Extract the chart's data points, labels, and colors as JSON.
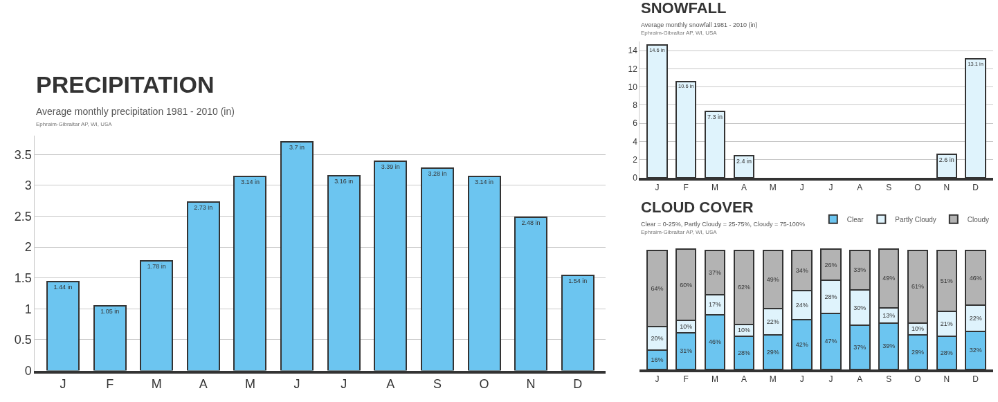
{
  "chart_data": [
    {
      "type": "bar",
      "title": "PRECIPITATION",
      "subtitle": "Average monthly precipitation 1981 - 2010 (in)",
      "annotations": [
        "Ephraim-Gibraltar AP, WI, USA"
      ],
      "categories": [
        "J",
        "F",
        "M",
        "A",
        "M",
        "J",
        "J",
        "A",
        "S",
        "O",
        "N",
        "D"
      ],
      "series": [
        {
          "color": "#6cc5f0",
          "values": [
            1.44,
            1.05,
            1.78,
            2.73,
            3.14,
            3.7,
            3.16,
            3.39,
            3.28,
            3.14,
            2.48,
            1.54
          ],
          "value_labels": [
            "1.44 in",
            "1.05 in",
            "1.78 in",
            "2.73 in",
            "3.14 in",
            "3.7 in",
            "3.16 in",
            "3.39 in",
            "3.28 in",
            "3.14 in",
            "2.48 in",
            "1.54 in"
          ]
        }
      ],
      "ylim": [
        0,
        3.8
      ],
      "yticks": [
        0,
        0.5,
        1,
        1.5,
        2,
        2.5,
        3,
        3.5
      ],
      "grid": "y",
      "legend": false
    },
    {
      "type": "bar",
      "title": "SNOWFALL",
      "subtitle": "Average monthly snowfall 1981 - 2010 (in)",
      "annotations": [
        "Ephraim-Gibraltar AP, WI, USA"
      ],
      "categories": [
        "J",
        "F",
        "M",
        "A",
        "M",
        "J",
        "J",
        "A",
        "S",
        "O",
        "N",
        "D"
      ],
      "series": [
        {
          "color": "#dff3fc",
          "values": [
            14.6,
            10.6,
            7.3,
            2.4,
            null,
            null,
            null,
            null,
            null,
            null,
            2.6,
            13.1
          ],
          "value_labels": [
            "14.6 in",
            "10.6 in",
            "7.3 in",
            "2.4 in",
            null,
            null,
            null,
            null,
            null,
            null,
            "2.6 in",
            "13.1 in"
          ]
        }
      ],
      "ylim": [
        0,
        15
      ],
      "yticks": [
        0,
        2,
        4,
        6,
        8,
        10,
        12,
        14
      ],
      "grid": "y",
      "legend": false
    },
    {
      "type": "bar",
      "title": "CLOUD COVER",
      "subtitle": "Clear = 0-25%, Partly Cloudy = 25-75%, Cloudy = 75-100%",
      "annotations": [
        "Ephraim-Gibraltar AP, WI, USA"
      ],
      "categories": [
        "J",
        "F",
        "M",
        "A",
        "M",
        "J",
        "J",
        "A",
        "S",
        "O",
        "N",
        "D"
      ],
      "stacked": true,
      "tick_labels": "x",
      "legend": "top right",
      "series": [
        {
          "name": "Clear",
          "color": "#6cc5f0",
          "values": [
            16,
            31,
            46,
            28,
            29,
            42,
            47,
            37,
            39,
            29,
            28,
            32
          ],
          "value_labels": [
            "16%",
            "31%",
            "46%",
            "28%",
            "29%",
            "42%",
            "47%",
            "37%",
            "39%",
            "29%",
            "28%",
            "32%"
          ]
        },
        {
          "name": "Partly Cloudy",
          "color": "#dff3fc",
          "values": [
            20,
            10,
            17,
            10,
            22,
            24,
            28,
            30,
            13,
            10,
            21,
            22
          ],
          "value_labels": [
            "20%",
            "10%",
            "17%",
            "10%",
            "22%",
            "24%",
            "28%",
            "30%",
            "13%",
            "10%",
            "21%",
            "22%"
          ]
        },
        {
          "name": "Cloudy",
          "color": "#b3b3b3",
          "values": [
            64,
            60,
            37,
            62,
            49,
            34,
            26,
            33,
            49,
            61,
            51,
            46
          ],
          "value_labels": [
            "64%",
            "60%",
            "37%",
            "62%",
            "49%",
            "34%",
            "26%",
            "33%",
            "49%",
            "61%",
            "51%",
            "46%"
          ]
        }
      ]
    }
  ]
}
